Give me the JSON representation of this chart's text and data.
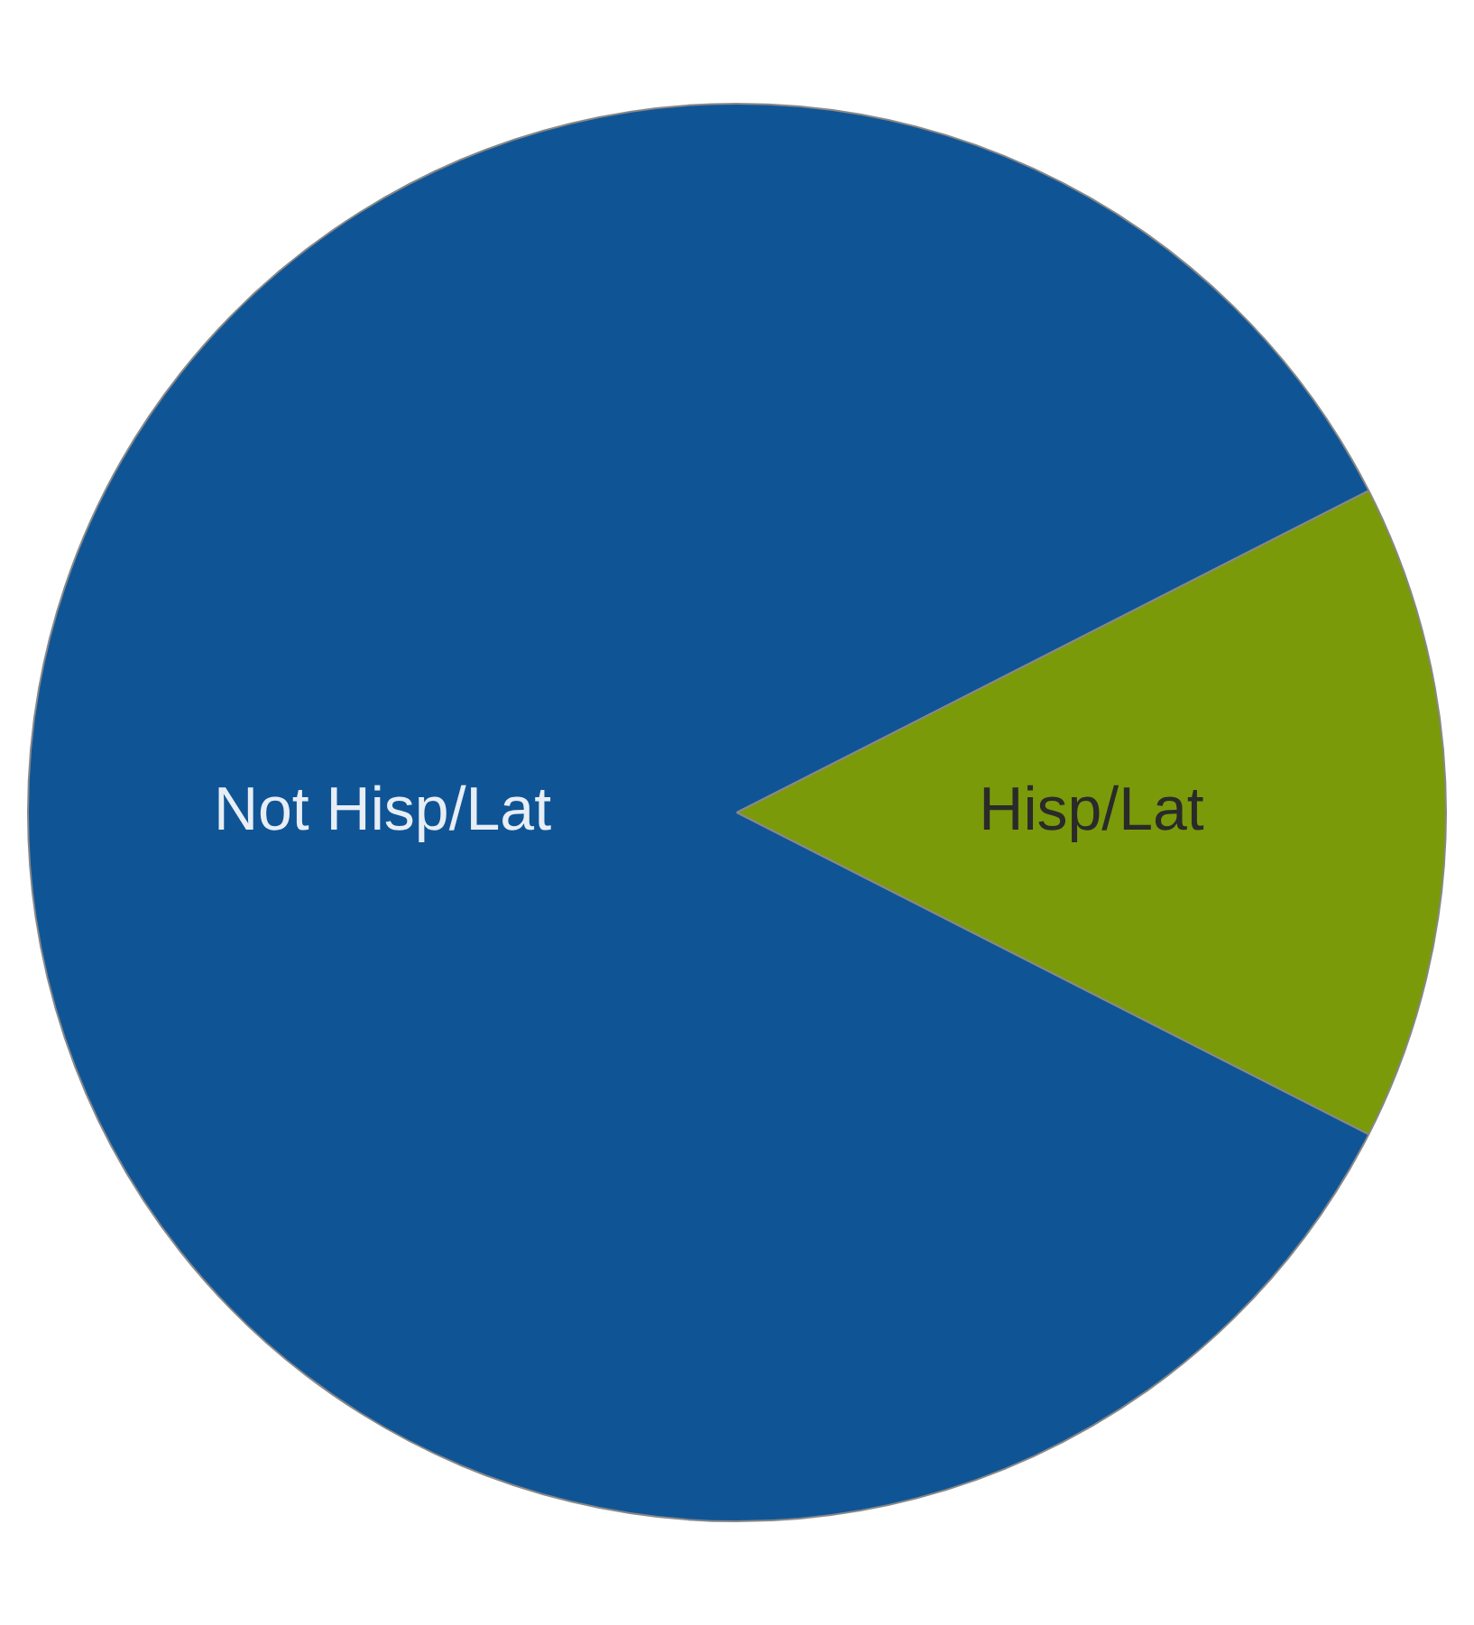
{
  "chart_data": {
    "type": "pie",
    "categories": [
      "Not Hisp/Lat",
      "Hisp/Lat"
    ],
    "values": [
      85,
      15
    ],
    "colors": [
      "#0f5596",
      "#7a9a0a"
    ],
    "legend": false
  }
}
